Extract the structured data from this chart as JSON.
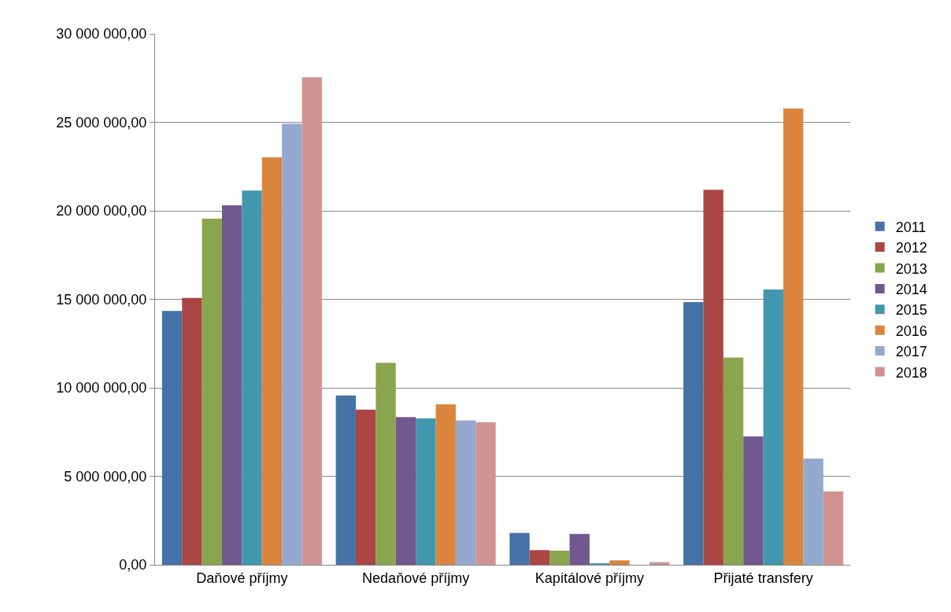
{
  "chart_data": {
    "type": "bar",
    "categories": [
      "Daňové příjmy",
      "Nedaňové příjmy",
      "Kapitálové příjmy",
      "Přijaté transfery"
    ],
    "series": [
      {
        "name": "2011",
        "color": "#4572a7",
        "values": [
          14340000,
          9570000,
          1800000,
          14840000
        ]
      },
      {
        "name": "2012",
        "color": "#aa4643",
        "values": [
          15080000,
          8770000,
          830000,
          21190000
        ]
      },
      {
        "name": "2013",
        "color": "#89a54e",
        "values": [
          19560000,
          11410000,
          800000,
          11710000
        ]
      },
      {
        "name": "2014",
        "color": "#71588f",
        "values": [
          20310000,
          8340000,
          1750000,
          7260000
        ]
      },
      {
        "name": "2015",
        "color": "#4198af",
        "values": [
          21140000,
          8280000,
          50000,
          15560000
        ]
      },
      {
        "name": "2016",
        "color": "#db843d",
        "values": [
          23020000,
          9070000,
          250000,
          25780000
        ]
      },
      {
        "name": "2017",
        "color": "#93a9cf",
        "values": [
          24920000,
          8160000,
          0,
          6000000
        ]
      },
      {
        "name": "2018",
        "color": "#d19392",
        "values": [
          27540000,
          8060000,
          150000,
          4150000
        ]
      }
    ],
    "ylim": [
      0,
      30000000
    ],
    "yticks": [
      {
        "value": 0,
        "label": "0,00"
      },
      {
        "value": 5000000,
        "label": "5 000 000,00"
      },
      {
        "value": 10000000,
        "label": "10 000 000,00"
      },
      {
        "value": 15000000,
        "label": "15 000 000,00"
      },
      {
        "value": 20000000,
        "label": "20 000 000,00"
      },
      {
        "value": 25000000,
        "label": "25 000 000,00"
      },
      {
        "value": 30000000,
        "label": "30 000 000,00"
      }
    ],
    "grid": "y",
    "legend": "right"
  }
}
